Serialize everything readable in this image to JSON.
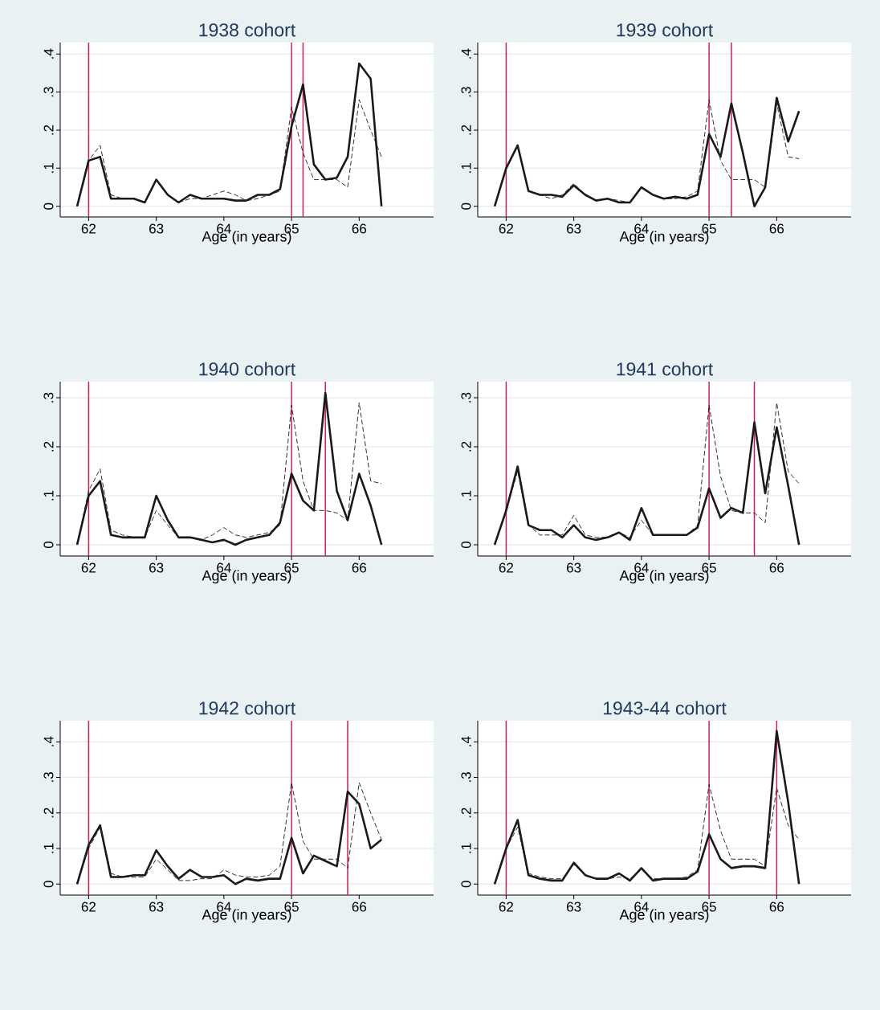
{
  "chart_data": [
    {
      "type": "line",
      "title": "1938 cohort",
      "xlabel": "Age (in years)",
      "x": [
        61.83,
        62,
        62.17,
        62.33,
        62.5,
        62.67,
        62.83,
        63,
        63.17,
        63.33,
        63.5,
        63.67,
        63.83,
        64,
        64.17,
        64.33,
        64.5,
        64.67,
        64.83,
        65,
        65.17,
        65.33,
        65.5,
        65.67,
        65.83,
        66,
        66.17,
        66.33
      ],
      "series": [
        {
          "color": "#1a1a1a",
          "line_style": "solid",
          "values": [
            0,
            0.12,
            0.13,
            0.02,
            0.02,
            0.02,
            0.01,
            0.07,
            0.03,
            0.01,
            0.03,
            0.02,
            0.02,
            0.02,
            0.015,
            0.015,
            0.03,
            0.03,
            0.045,
            0.21,
            0.32,
            0.11,
            0.07,
            0.075,
            0.13,
            0.375,
            0.335,
            0
          ]
        },
        {
          "color": "#1a1a1a",
          "line_style": "dashed",
          "values": [
            0,
            0.12,
            0.16,
            0.03,
            0.02,
            0.02,
            0.01,
            0.07,
            0.03,
            0.01,
            0.02,
            0.02,
            0.03,
            0.04,
            0.03,
            0.015,
            0.02,
            0.03,
            0.04,
            0.26,
            0.14,
            0.07,
            0.07,
            0.07,
            0.05,
            0.28,
            0.2,
            0.13
          ]
        }
      ],
      "xlim": [
        61.58,
        67.1
      ],
      "ylim": [
        -0.028,
        0.43
      ],
      "xticks": [
        62,
        63,
        64,
        65,
        66
      ],
      "yticks": [
        0,
        {
          "value": 0.1,
          "label": ".1"
        },
        {
          "value": 0.2,
          "label": ".2"
        },
        {
          "value": 0.3,
          "label": ".3"
        },
        {
          "value": 0.4,
          "label": ".4"
        }
      ],
      "grid": "y",
      "ref_lines": [
        {
          "axis": "x",
          "value": 62,
          "color": "#d0204a"
        },
        {
          "axis": "x",
          "value": 65,
          "color": "#d0204a"
        },
        {
          "axis": "x",
          "value": 65.17,
          "color": "#d0204a"
        }
      ]
    },
    {
      "type": "line",
      "title": "1939 cohort",
      "xlabel": "Age (in years)",
      "x": [
        61.83,
        62,
        62.17,
        62.33,
        62.5,
        62.67,
        62.83,
        63,
        63.17,
        63.33,
        63.5,
        63.67,
        63.83,
        64,
        64.17,
        64.33,
        64.5,
        64.67,
        64.83,
        65,
        65.17,
        65.33,
        65.5,
        65.67,
        65.83,
        66,
        66.17,
        66.33
      ],
      "series": [
        {
          "color": "#1a1a1a",
          "line_style": "solid",
          "values": [
            0,
            0.1,
            0.16,
            0.04,
            0.03,
            0.03,
            0.025,
            0.055,
            0.03,
            0.015,
            0.02,
            0.01,
            0.01,
            0.05,
            0.03,
            0.02,
            0.025,
            0.02,
            0.03,
            0.19,
            0.13,
            0.27,
            0.14,
            0,
            0.05,
            0.285,
            0.17,
            0.25
          ]
        },
        {
          "color": "#1a1a1a",
          "line_style": "dashed",
          "values": [
            0,
            0.1,
            0.16,
            0.04,
            0.03,
            0.02,
            0.03,
            0.06,
            0.03,
            0.015,
            0.02,
            0.015,
            0.01,
            0.05,
            0.03,
            0.02,
            0.02,
            0.025,
            0.04,
            0.28,
            0.12,
            0.07,
            0.07,
            0.07,
            0.05,
            0.27,
            0.13,
            0.125
          ]
        }
      ],
      "xlim": [
        61.58,
        67.1
      ],
      "ylim": [
        -0.028,
        0.43
      ],
      "xticks": [
        62,
        63,
        64,
        65,
        66
      ],
      "yticks": [
        0,
        {
          "value": 0.1,
          "label": ".1"
        },
        {
          "value": 0.2,
          "label": ".2"
        },
        {
          "value": 0.3,
          "label": ".3"
        },
        {
          "value": 0.4,
          "label": ".4"
        }
      ],
      "grid": "y",
      "ref_lines": [
        {
          "axis": "x",
          "value": 62,
          "color": "#d0204a"
        },
        {
          "axis": "x",
          "value": 65,
          "color": "#d0204a"
        },
        {
          "axis": "x",
          "value": 65.33,
          "color": "#d0204a"
        }
      ]
    },
    {
      "type": "line",
      "title": "1940 cohort",
      "xlabel": "Age (in years)",
      "x": [
        61.83,
        62,
        62.17,
        62.33,
        62.5,
        62.67,
        62.83,
        63,
        63.17,
        63.33,
        63.5,
        63.67,
        63.83,
        64,
        64.17,
        64.33,
        64.5,
        64.67,
        64.83,
        65,
        65.17,
        65.33,
        65.5,
        65.67,
        65.83,
        66,
        66.17,
        66.33
      ],
      "series": [
        {
          "color": "#1a1a1a",
          "line_style": "solid",
          "values": [
            0,
            0.1,
            0.13,
            0.02,
            0.015,
            0.015,
            0.015,
            0.1,
            0.05,
            0.015,
            0.015,
            0.01,
            0.005,
            0.01,
            0,
            0.01,
            0.015,
            0.02,
            0.045,
            0.145,
            0.09,
            0.07,
            0.31,
            0.11,
            0.05,
            0.145,
            0.08,
            0
          ]
        },
        {
          "color": "#1a1a1a",
          "line_style": "dashed",
          "values": [
            0,
            0.11,
            0.155,
            0.03,
            0.02,
            0.015,
            0.015,
            0.07,
            0.04,
            0.015,
            0.015,
            0.01,
            0.02,
            0.035,
            0.02,
            0.015,
            0.02,
            0.025,
            0.04,
            0.285,
            0.13,
            0.07,
            0.07,
            0.065,
            0.05,
            0.29,
            0.13,
            0.125
          ]
        }
      ],
      "xlim": [
        61.58,
        67.1
      ],
      "ylim": [
        -0.023,
        0.333
      ],
      "xticks": [
        62,
        63,
        64,
        65,
        66
      ],
      "yticks": [
        0,
        {
          "value": 0.1,
          "label": ".1"
        },
        {
          "value": 0.2,
          "label": ".2"
        },
        {
          "value": 0.3,
          "label": ".3"
        }
      ],
      "grid": "y",
      "ref_lines": [
        {
          "axis": "x",
          "value": 62,
          "color": "#d0204a"
        },
        {
          "axis": "x",
          "value": 65,
          "color": "#d0204a"
        },
        {
          "axis": "x",
          "value": 65.5,
          "color": "#d0204a"
        }
      ]
    },
    {
      "type": "line",
      "title": "1941 cohort",
      "xlabel": "Age (in years)",
      "x": [
        61.83,
        62,
        62.17,
        62.33,
        62.5,
        62.67,
        62.83,
        63,
        63.17,
        63.33,
        63.5,
        63.67,
        63.83,
        64,
        64.17,
        64.33,
        64.5,
        64.67,
        64.83,
        65,
        65.17,
        65.33,
        65.5,
        65.67,
        65.83,
        66,
        66.17,
        66.33
      ],
      "series": [
        {
          "color": "#1a1a1a",
          "line_style": "solid",
          "values": [
            0,
            0.07,
            0.16,
            0.04,
            0.03,
            0.03,
            0.015,
            0.04,
            0.015,
            0.01,
            0.015,
            0.025,
            0.01,
            0.075,
            0.02,
            0.02,
            0.02,
            0.02,
            0.035,
            0.115,
            0.055,
            0.075,
            0.065,
            0.25,
            0.105,
            0.24,
            0.12,
            0
          ]
        },
        {
          "color": "#1a1a1a",
          "line_style": "dashed",
          "values": [
            0,
            0.07,
            0.15,
            0.04,
            0.02,
            0.02,
            0.02,
            0.06,
            0.02,
            0.015,
            0.015,
            0.025,
            0.015,
            0.05,
            0.02,
            0.02,
            0.02,
            0.02,
            0.04,
            0.285,
            0.14,
            0.07,
            0.065,
            0.065,
            0.045,
            0.29,
            0.15,
            0.125
          ]
        }
      ],
      "xlim": [
        61.58,
        67.1
      ],
      "ylim": [
        -0.023,
        0.333
      ],
      "xticks": [
        62,
        63,
        64,
        65,
        66
      ],
      "yticks": [
        0,
        {
          "value": 0.1,
          "label": ".1"
        },
        {
          "value": 0.2,
          "label": ".2"
        },
        {
          "value": 0.3,
          "label": ".3"
        }
      ],
      "grid": "y",
      "ref_lines": [
        {
          "axis": "x",
          "value": 62,
          "color": "#d0204a"
        },
        {
          "axis": "x",
          "value": 65,
          "color": "#d0204a"
        },
        {
          "axis": "x",
          "value": 65.67,
          "color": "#d0204a"
        }
      ]
    },
    {
      "type": "line",
      "title": "1942 cohort",
      "xlabel": "Age (in years)",
      "x": [
        61.83,
        62,
        62.17,
        62.33,
        62.5,
        62.67,
        62.83,
        63,
        63.17,
        63.33,
        63.5,
        63.67,
        63.83,
        64,
        64.17,
        64.33,
        64.5,
        64.67,
        64.83,
        65,
        65.17,
        65.33,
        65.5,
        65.67,
        65.83,
        66,
        66.17,
        66.33
      ],
      "series": [
        {
          "color": "#1a1a1a",
          "line_style": "solid",
          "values": [
            0,
            0.11,
            0.165,
            0.02,
            0.02,
            0.025,
            0.025,
            0.095,
            0.05,
            0.015,
            0.04,
            0.02,
            0.02,
            0.025,
            0,
            0.015,
            0.01,
            0.015,
            0.015,
            0.13,
            0.03,
            0.08,
            0.065,
            0.05,
            0.26,
            0.225,
            0.1,
            0.125
          ]
        },
        {
          "color": "#1a1a1a",
          "line_style": "dashed",
          "values": [
            0,
            0.1,
            0.16,
            0.03,
            0.02,
            0.02,
            0.02,
            0.07,
            0.04,
            0.01,
            0.01,
            0.015,
            0.015,
            0.04,
            0.025,
            0.02,
            0.02,
            0.025,
            0.05,
            0.285,
            0.12,
            0.07,
            0.07,
            0.07,
            0.045,
            0.285,
            0.2,
            0.125
          ]
        }
      ],
      "xlim": [
        61.58,
        67.1
      ],
      "ylim": [
        -0.031,
        0.459
      ],
      "xticks": [
        62,
        63,
        64,
        65,
        66
      ],
      "yticks": [
        0,
        {
          "value": 0.1,
          "label": ".1"
        },
        {
          "value": 0.2,
          "label": ".2"
        },
        {
          "value": 0.3,
          "label": ".3"
        },
        {
          "value": 0.4,
          "label": ".4"
        }
      ],
      "grid": "y",
      "ref_lines": [
        {
          "axis": "x",
          "value": 62,
          "color": "#d0204a"
        },
        {
          "axis": "x",
          "value": 65,
          "color": "#d0204a"
        },
        {
          "axis": "x",
          "value": 65.83,
          "color": "#d0204a"
        }
      ]
    },
    {
      "type": "line",
      "title": "1943-44 cohort",
      "xlabel": "Age (in years)",
      "x": [
        61.83,
        62,
        62.17,
        62.33,
        62.5,
        62.67,
        62.83,
        63,
        63.17,
        63.33,
        63.5,
        63.67,
        63.83,
        64,
        64.17,
        64.33,
        64.5,
        64.67,
        64.83,
        65,
        65.17,
        65.33,
        65.5,
        65.67,
        65.83,
        66,
        66.17,
        66.33
      ],
      "series": [
        {
          "color": "#1a1a1a",
          "line_style": "solid",
          "values": [
            0,
            0.1,
            0.18,
            0.025,
            0.015,
            0.01,
            0.01,
            0.06,
            0.025,
            0.015,
            0.015,
            0.03,
            0.01,
            0.045,
            0.01,
            0.015,
            0.015,
            0.015,
            0.035,
            0.14,
            0.07,
            0.045,
            0.05,
            0.05,
            0.045,
            0.43,
            0.23,
            0
          ]
        },
        {
          "color": "#1a1a1a",
          "line_style": "dashed",
          "values": [
            0,
            0.1,
            0.16,
            0.03,
            0.02,
            0.015,
            0.015,
            0.055,
            0.025,
            0.015,
            0.015,
            0.02,
            0.015,
            0.04,
            0.015,
            0.015,
            0.015,
            0.02,
            0.04,
            0.28,
            0.15,
            0.07,
            0.07,
            0.07,
            0.05,
            0.27,
            0.165,
            0.125
          ]
        }
      ],
      "xlim": [
        61.58,
        67.1
      ],
      "ylim": [
        -0.031,
        0.459
      ],
      "xticks": [
        62,
        63,
        64,
        65,
        66
      ],
      "yticks": [
        0,
        {
          "value": 0.1,
          "label": ".1"
        },
        {
          "value": 0.2,
          "label": ".2"
        },
        {
          "value": 0.3,
          "label": ".3"
        },
        {
          "value": 0.4,
          "label": ".4"
        }
      ],
      "grid": "y",
      "ref_lines": [
        {
          "axis": "x",
          "value": 62,
          "color": "#d0204a"
        },
        {
          "axis": "x",
          "value": 65,
          "color": "#d0204a"
        },
        {
          "axis": "x",
          "value": 66,
          "color": "#d0204a"
        }
      ]
    }
  ]
}
